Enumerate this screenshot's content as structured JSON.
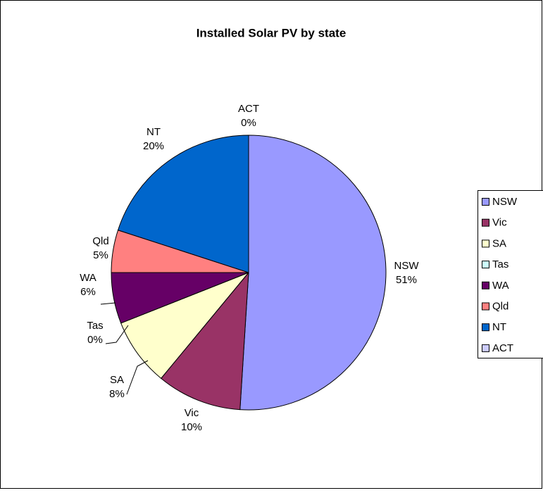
{
  "chart_data": {
    "type": "pie",
    "title": "Installed Solar PV by state",
    "categories": [
      "NSW",
      "Vic",
      "SA",
      "Tas",
      "WA",
      "Qld",
      "NT",
      "ACT"
    ],
    "values": [
      51,
      10,
      8,
      0,
      6,
      5,
      20,
      0
    ],
    "value_labels": [
      "51%",
      "10%",
      "8%",
      "0%",
      "6%",
      "5%",
      "20%",
      "0%"
    ],
    "colors": [
      "#9999ff",
      "#993366",
      "#ffffcc",
      "#ccffff",
      "#660066",
      "#ff8080",
      "#0066cc",
      "#ccccff"
    ],
    "legend": "right"
  }
}
